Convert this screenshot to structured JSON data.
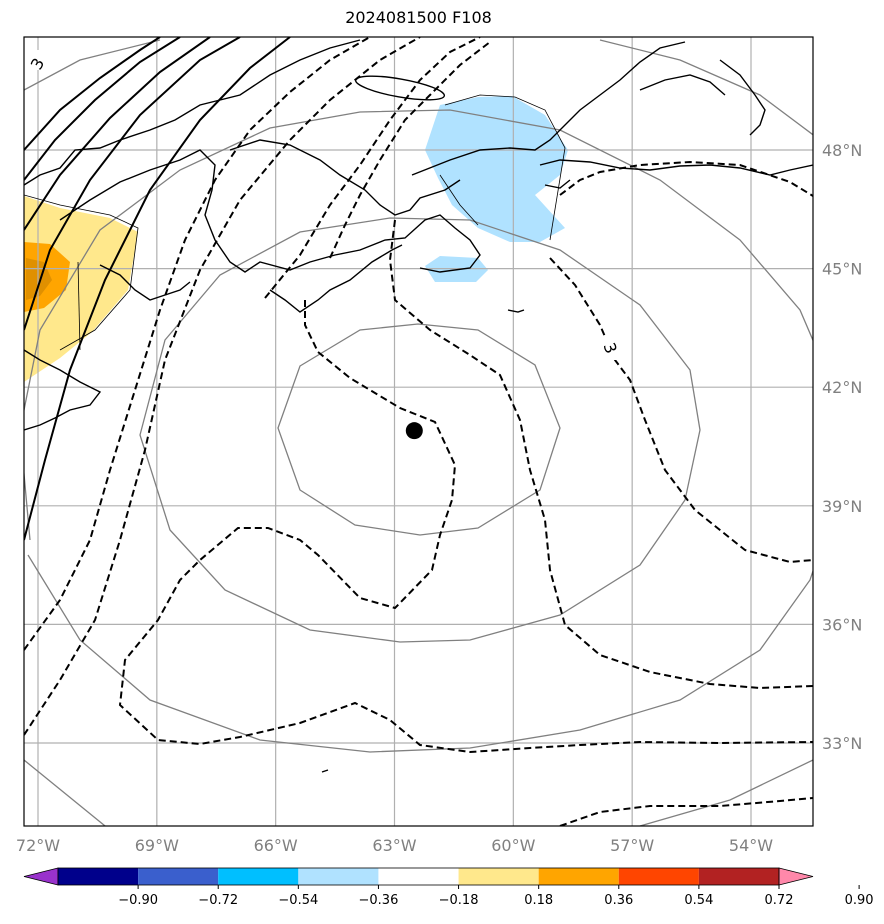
{
  "chart_data": {
    "type": "map-contour",
    "title": "2024081500 F108",
    "projection": "regional lat/lon map centered near 62.5W 41N",
    "xaxis": {
      "ticks": [
        -72,
        -69,
        -66,
        -63,
        -60,
        -57,
        -54
      ],
      "labels": [
        "72°W",
        "69°W",
        "66°W",
        "63°W",
        "60°W",
        "57°W",
        "54°W"
      ]
    },
    "yaxis": {
      "ticks": [
        33,
        36,
        39,
        42,
        45,
        48
      ],
      "labels": [
        "33°N",
        "36°N",
        "39°N",
        "42°N",
        "45°N",
        "48°N"
      ]
    },
    "grid": true,
    "storm_center": {
      "lon": -62.5,
      "lat": 40.9,
      "marker": "filled-circle"
    },
    "contour_labels": [
      "3",
      "3"
    ],
    "colorbar": {
      "orientation": "horizontal",
      "extend": "both",
      "tick_labels": [
        "−0.90",
        "−0.72",
        "−0.54",
        "−0.36",
        "−0.18",
        "0.18",
        "0.36",
        "0.54",
        "0.72",
        "0.90"
      ],
      "bins": [
        {
          "range": "< −0.90",
          "color": "#9932CC"
        },
        {
          "range": "−0.90 to −0.72",
          "color": "#00008B"
        },
        {
          "range": "−0.72 to −0.54",
          "color": "#3A5FCD"
        },
        {
          "range": "−0.54 to −0.36",
          "color": "#00BFFF"
        },
        {
          "range": "−0.36 to −0.18",
          "color": "#B0E2FF"
        },
        {
          "range": "−0.18 to 0.18",
          "color": "#FFFFFF"
        },
        {
          "range": "0.18 to 0.36",
          "color": "#FFE88C"
        },
        {
          "range": "0.36 to 0.54",
          "color": "#FFA500"
        },
        {
          "range": "0.54 to 0.72",
          "color": "#FF4500"
        },
        {
          "range": "0.72 to 0.90",
          "color": "#B22222"
        },
        {
          "range": "> 0.90",
          "color": "#FF88AA"
        }
      ]
    },
    "shaded_regions": [
      {
        "name": "negative anomaly near Gulf of St. Lawrence",
        "bin": "−0.36 to −0.18"
      },
      {
        "name": "positive anomaly near Maine coast",
        "bin": "0.18 to 0.54"
      }
    ]
  }
}
